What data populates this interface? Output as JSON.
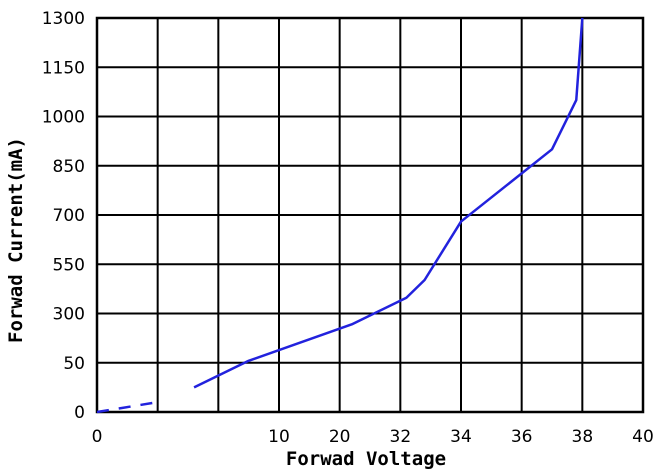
{
  "chart_data": {
    "type": "line",
    "xlabel": "Forwad Voltage",
    "ylabel": "Forwad Current(mA)",
    "x_ticks": [
      "0",
      "",
      "",
      "10",
      "20",
      "32",
      "34",
      "36",
      "38",
      "40"
    ],
    "y_ticks": [
      "0",
      "50",
      "300",
      "550",
      "700",
      "850",
      "1000",
      "1150",
      "1300"
    ],
    "grid": true,
    "line_color": "#2222dd",
    "dashed_segment": {
      "x": [
        0,
        1.0
      ],
      "y": [
        0,
        10
      ]
    },
    "series": [
      {
        "x": [
          1.6,
          2.5,
          4.2,
          5.1,
          5.4,
          6.0,
          7.5,
          7.9,
          8.0
        ],
        "y": [
          25,
          60,
          245,
          380,
          470,
          680,
          900,
          1050,
          1300
        ]
      }
    ]
  }
}
